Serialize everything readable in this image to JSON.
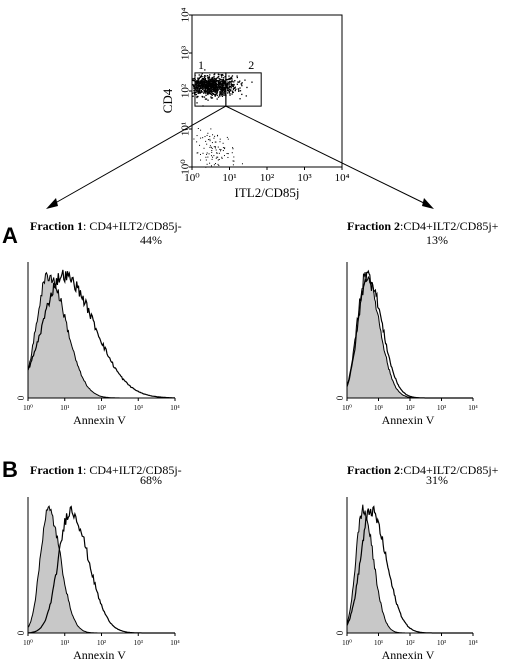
{
  "chart_data": [
    {
      "type": "scatter",
      "name": "dot-plot",
      "xlabel": "ITL2/CD85j",
      "ylabel": "CD4",
      "x_scale": "log",
      "y_scale": "log",
      "xlim": [
        1,
        10000
      ],
      "ylim": [
        1,
        10000
      ],
      "x_ticks": [
        "10⁰",
        "10¹",
        "10²",
        "10³",
        "10⁴"
      ],
      "y_ticks": [
        "10⁰",
        "10¹",
        "10²",
        "10³",
        "10⁴"
      ],
      "populations": [
        {
          "name": "CD4+",
          "center": [
            3,
            140
          ],
          "spread": [
            0.35,
            0.13
          ],
          "points": 1000
        },
        {
          "name": "CD4-",
          "center": [
            4,
            2.5
          ],
          "spread": [
            0.28,
            0.28
          ],
          "points": 110
        }
      ],
      "gates": [
        {
          "label": "1",
          "x_range": [
            1.2,
            8
          ],
          "y_range": [
            40,
            300
          ]
        },
        {
          "label": "2",
          "x_range": [
            8,
            70
          ],
          "y_range": [
            40,
            300
          ]
        }
      ]
    },
    {
      "type": "histogram",
      "panel": "A",
      "fraction_label": "Fraction 1",
      "fraction_text": ": CD4+ILT2/CD85j-",
      "percent": "44%",
      "xlabel": "Annexin V",
      "x_scale": "log",
      "xlim": [
        1,
        10000
      ],
      "x_ticks": [
        "10⁰",
        "10¹",
        "10²",
        "10³",
        "10⁴"
      ],
      "y_ticks": [
        "0"
      ],
      "series": [
        {
          "role": "control",
          "filled": true,
          "log_mode": 0.55,
          "width": 0.32
        },
        {
          "role": "stained",
          "filled": false,
          "log_mode": 0.95,
          "width": 0.55
        }
      ]
    },
    {
      "type": "histogram",
      "panel": "A",
      "fraction_label": "Fraction 2",
      "fraction_text": ":CD4+ILT2/CD85j+",
      "percent": "13%",
      "xlabel": "Annexin V",
      "x_scale": "log",
      "xlim": [
        1,
        10000
      ],
      "x_ticks": [
        "10⁰",
        "10¹",
        "10²",
        "10³",
        "10⁴"
      ],
      "y_ticks": [
        "0"
      ],
      "series": [
        {
          "role": "control",
          "filled": true,
          "log_mode": 0.6,
          "width": 0.28
        },
        {
          "role": "stained",
          "filled": false,
          "log_mode": 0.65,
          "width": 0.3
        }
      ]
    },
    {
      "type": "histogram",
      "panel": "B",
      "fraction_label": "Fraction 1",
      "fraction_text": ": CD4+ILT2/CD85j-",
      "percent": "68%",
      "xlabel": "Annexin V",
      "x_scale": "log",
      "xlim": [
        1,
        10000
      ],
      "x_ticks": [
        "10⁰",
        "10¹",
        "10²",
        "10³",
        "10⁴"
      ],
      "y_ticks": [
        "0"
      ],
      "series": [
        {
          "role": "control",
          "filled": true,
          "log_mode": 0.55,
          "width": 0.22
        },
        {
          "role": "stained",
          "filled": false,
          "log_mode": 1.15,
          "width": 0.32
        }
      ]
    },
    {
      "type": "histogram",
      "panel": "B",
      "fraction_label": "Fraction 2",
      "fraction_text": ":CD4+ILT2/CD85j+",
      "percent": "31%",
      "xlabel": "Annexin V",
      "x_scale": "log",
      "xlim": [
        1,
        10000
      ],
      "x_ticks": [
        "10⁰",
        "10¹",
        "10²",
        "10³",
        "10⁴"
      ],
      "y_ticks": [
        "0"
      ],
      "series": [
        {
          "role": "control",
          "filled": true,
          "log_mode": 0.5,
          "width": 0.22
        },
        {
          "role": "stained",
          "filled": false,
          "log_mode": 0.75,
          "width": 0.32
        }
      ]
    }
  ],
  "panel_letters": [
    "A",
    "B"
  ],
  "colors": {
    "ink": "#000000",
    "control_fill": "#c8c8c8",
    "background": "#ffffff"
  }
}
